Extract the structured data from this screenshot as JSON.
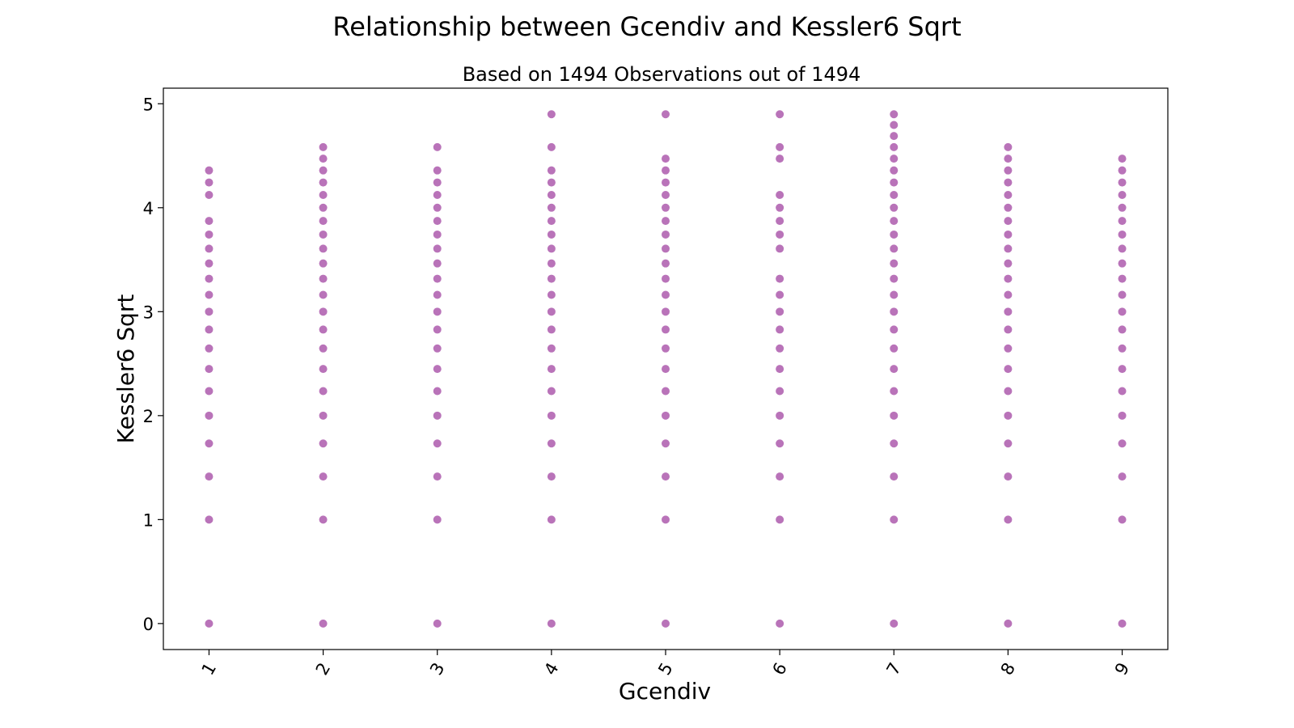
{
  "chart_data": {
    "type": "scatter",
    "title": "Relationship between Gcendiv and Kessler6 Sqrt",
    "subtitle": "Based on 1494 Observations out of 1494",
    "xlabel": "Gcendiv",
    "ylabel": "Kessler6 Sqrt",
    "xlim": [
      0.6,
      9.4
    ],
    "ylim": [
      -0.25,
      5.15
    ],
    "x_ticks": [
      "1",
      "2",
      "3",
      "4",
      "5",
      "6",
      "7",
      "8",
      "9"
    ],
    "y_ticks": [
      "0",
      "1",
      "2",
      "3",
      "4",
      "5"
    ],
    "grid": false,
    "marker_color": "#800080",
    "marker_alpha": 0.55,
    "series": [
      {
        "points": [
          {
            "x": 1,
            "y": [
              0,
              1,
              1.414,
              1.732,
              2,
              2.236,
              2.449,
              2.646,
              2.828,
              3,
              3.162,
              3.317,
              3.464,
              3.606,
              3.742,
              3.873,
              4.123,
              4.243,
              4.359
            ]
          },
          {
            "x": 2,
            "y": [
              0,
              1,
              1.414,
              1.732,
              2,
              2.236,
              2.449,
              2.646,
              2.828,
              3,
              3.162,
              3.317,
              3.464,
              3.606,
              3.742,
              3.873,
              4,
              4.123,
              4.243,
              4.359,
              4.472,
              4.583
            ]
          },
          {
            "x": 3,
            "y": [
              0,
              1,
              1.414,
              1.732,
              2,
              2.236,
              2.449,
              2.646,
              2.828,
              3,
              3.162,
              3.317,
              3.464,
              3.606,
              3.742,
              3.873,
              4,
              4.123,
              4.243,
              4.359,
              4.583
            ]
          },
          {
            "x": 4,
            "y": [
              0,
              1,
              1.414,
              1.732,
              2,
              2.236,
              2.449,
              2.646,
              2.828,
              3,
              3.162,
              3.317,
              3.464,
              3.606,
              3.742,
              3.873,
              4,
              4.123,
              4.243,
              4.359,
              4.583,
              4.899
            ]
          },
          {
            "x": 5,
            "y": [
              0,
              1,
              1.414,
              1.732,
              2,
              2.236,
              2.449,
              2.646,
              2.828,
              3,
              3.162,
              3.317,
              3.464,
              3.606,
              3.742,
              3.873,
              4,
              4.123,
              4.243,
              4.359,
              4.472,
              4.899
            ]
          },
          {
            "x": 6,
            "y": [
              0,
              1,
              1.414,
              1.732,
              2,
              2.236,
              2.449,
              2.646,
              2.828,
              3,
              3.162,
              3.317,
              3.606,
              3.742,
              3.873,
              4,
              4.123,
              4.472,
              4.583,
              4.899
            ]
          },
          {
            "x": 7,
            "y": [
              0,
              1,
              1.414,
              1.732,
              2,
              2.236,
              2.449,
              2.646,
              2.828,
              3,
              3.162,
              3.317,
              3.464,
              3.606,
              3.742,
              3.873,
              4,
              4.123,
              4.243,
              4.359,
              4.472,
              4.583,
              4.69,
              4.796,
              4.899
            ]
          },
          {
            "x": 8,
            "y": [
              0,
              1,
              1.414,
              1.732,
              2,
              2.236,
              2.449,
              2.646,
              2.828,
              3,
              3.162,
              3.317,
              3.464,
              3.606,
              3.742,
              3.873,
              4,
              4.123,
              4.243,
              4.359,
              4.472,
              4.583
            ]
          },
          {
            "x": 9,
            "y": [
              0,
              1,
              1.414,
              1.732,
              2,
              2.236,
              2.449,
              2.646,
              2.828,
              3,
              3.162,
              3.317,
              3.464,
              3.606,
              3.742,
              3.873,
              4,
              4.123,
              4.243,
              4.359,
              4.472
            ]
          }
        ]
      }
    ]
  }
}
